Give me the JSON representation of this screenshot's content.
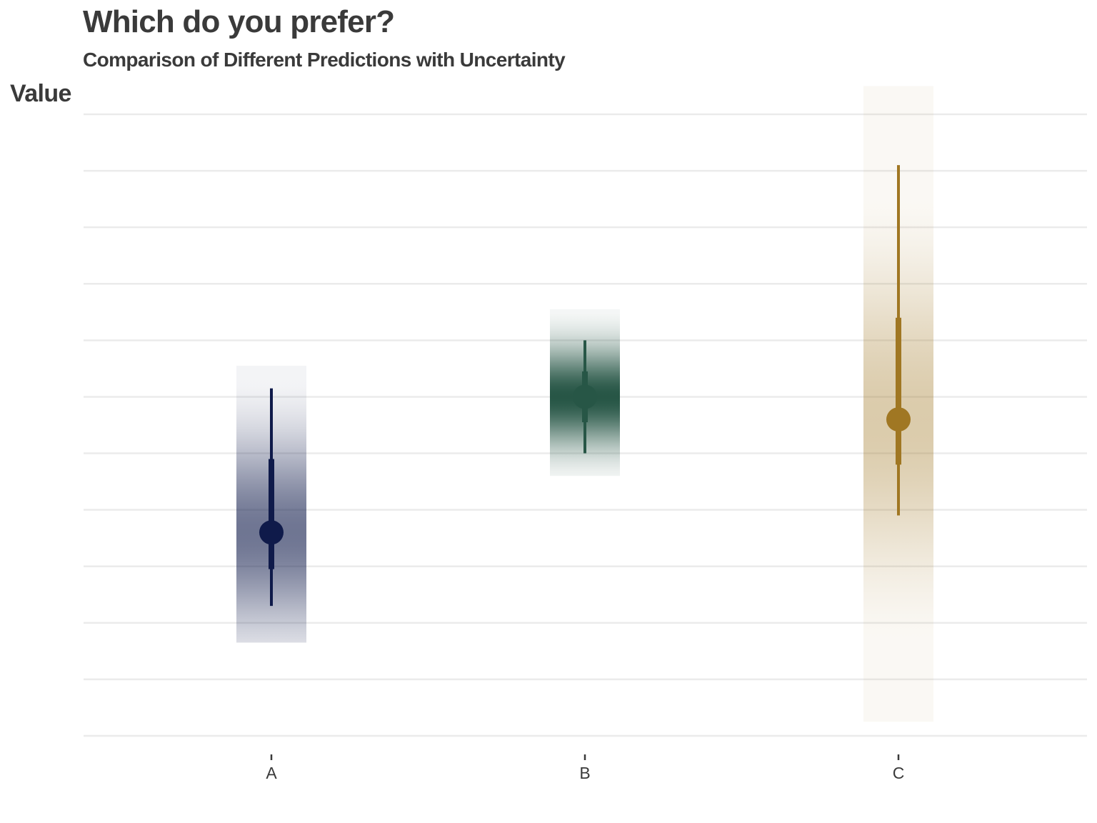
{
  "chart_data": {
    "type": "interval",
    "title": "Which do you prefer?",
    "subtitle": "Comparison of Different Predictions with Uncertainty",
    "ylabel": "Value",
    "xlabel": "",
    "categories": [
      "A",
      "B",
      "C"
    ],
    "ylim": [
      0,
      22
    ],
    "grid": true,
    "y_tick_labels_shown": false,
    "series": [
      {
        "category": "A",
        "color": "#0f1a4a",
        "point": 7.2,
        "inner_interval": [
          5.9,
          9.8
        ],
        "outer_interval": [
          4.6,
          12.3
        ],
        "density_range": [
          3.3,
          13.1
        ]
      },
      {
        "category": "B",
        "color": "#275646",
        "point": 12.0,
        "inner_interval": [
          11.1,
          12.9
        ],
        "outer_interval": [
          10.0,
          14.0
        ],
        "density_range": [
          9.2,
          15.1
        ]
      },
      {
        "category": "C",
        "color": "#a07723",
        "point": 11.2,
        "inner_interval": [
          9.6,
          14.8
        ],
        "outer_interval": [
          7.8,
          20.2
        ],
        "density_range": [
          0.5,
          23.0
        ]
      }
    ]
  }
}
